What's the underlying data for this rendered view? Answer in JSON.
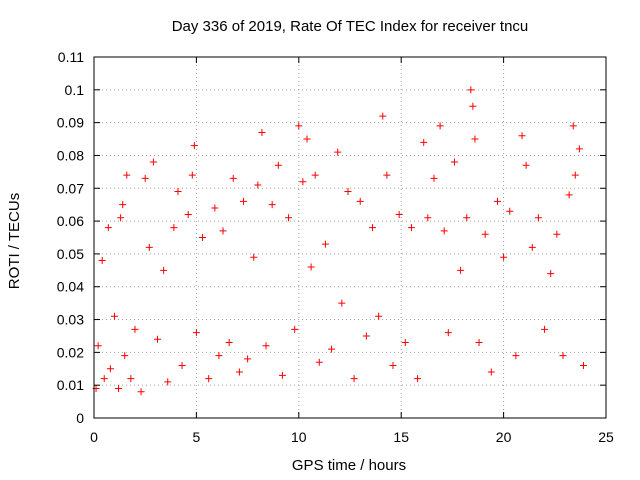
{
  "chart_data": {
    "type": "scatter",
    "title": "Day 336 of 2019, Rate Of TEC Index for receiver tncu",
    "xlabel": "GPS time / hours",
    "ylabel": "ROTI / TECUs",
    "xlim": [
      0,
      25
    ],
    "ylim": [
      0,
      0.11
    ],
    "x_ticks": [
      "0",
      "5",
      "10",
      "15",
      "20",
      "25"
    ],
    "y_ticks": [
      "0",
      "0.01",
      "0.02",
      "0.03",
      "0.04",
      "0.05",
      "0.06",
      "0.07",
      "0.08",
      "0.09",
      "0.1",
      "0.11"
    ],
    "grid": true,
    "marker": "+",
    "color": "#ff0000",
    "series": [
      {
        "x": [
          0.1,
          0.2,
          0.4,
          0.5,
          0.7,
          0.8,
          1.0,
          1.2,
          1.3,
          1.4,
          1.5,
          1.6,
          1.8,
          2.0,
          2.3,
          2.5,
          2.7,
          2.9,
          3.1,
          3.4,
          3.6,
          3.9,
          4.1,
          4.3,
          4.6,
          4.8,
          4.9,
          5.0,
          5.3,
          5.6,
          5.9,
          6.1,
          6.3,
          6.6,
          6.8,
          7.1,
          7.3,
          7.5,
          7.8,
          8.0,
          8.2,
          8.4,
          8.7,
          9.0,
          9.2,
          9.5,
          9.8,
          10.0,
          10.2,
          10.4,
          10.6,
          10.8,
          11.0,
          11.3,
          11.6,
          11.9,
          12.1,
          12.4,
          12.7,
          13.0,
          13.3,
          13.6,
          13.9,
          14.1,
          14.3,
          14.6,
          14.9,
          15.2,
          15.5,
          15.8,
          16.1,
          16.3,
          16.6,
          16.9,
          17.1,
          17.3,
          17.6,
          17.9,
          18.2,
          18.4,
          18.5,
          18.6,
          18.8,
          19.1,
          19.4,
          19.7,
          20.0,
          20.3,
          20.6,
          20.9,
          21.1,
          21.4,
          21.7,
          22.0,
          22.3,
          22.6,
          22.9,
          23.2,
          23.4,
          23.5,
          23.7,
          23.9
        ],
        "y": [
          0.009,
          0.022,
          0.048,
          0.012,
          0.058,
          0.015,
          0.031,
          0.009,
          0.061,
          0.065,
          0.019,
          0.074,
          0.012,
          0.027,
          0.008,
          0.073,
          0.052,
          0.078,
          0.024,
          0.045,
          0.011,
          0.058,
          0.069,
          0.016,
          0.062,
          0.074,
          0.083,
          0.026,
          0.055,
          0.012,
          0.064,
          0.019,
          0.057,
          0.023,
          0.073,
          0.014,
          0.066,
          0.018,
          0.049,
          0.071,
          0.087,
          0.022,
          0.065,
          0.077,
          0.013,
          0.061,
          0.027,
          0.089,
          0.072,
          0.085,
          0.046,
          0.074,
          0.017,
          0.053,
          0.021,
          0.081,
          0.035,
          0.069,
          0.012,
          0.066,
          0.025,
          0.058,
          0.031,
          0.092,
          0.074,
          0.016,
          0.062,
          0.023,
          0.058,
          0.012,
          0.084,
          0.061,
          0.073,
          0.089,
          0.057,
          0.026,
          0.078,
          0.045,
          0.061,
          0.1,
          0.095,
          0.085,
          0.023,
          0.056,
          0.014,
          0.066,
          0.049,
          0.063,
          0.019,
          0.086,
          0.077,
          0.052,
          0.061,
          0.027,
          0.044,
          0.056,
          0.019,
          0.068,
          0.089,
          0.074,
          0.082,
          0.016
        ]
      }
    ]
  }
}
